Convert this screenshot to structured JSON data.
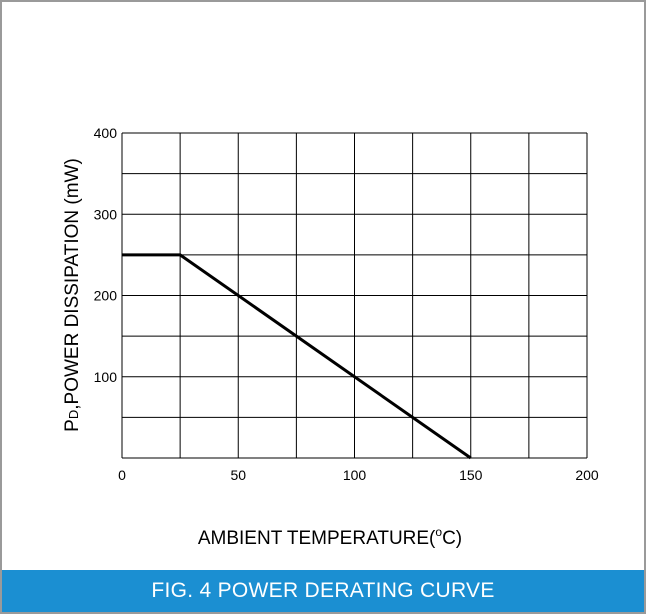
{
  "colors": {
    "caption_bg": "#1b8fd2",
    "caption_text": "#ffffff",
    "border": "#9a9a9a",
    "grid": "#000000",
    "line": "#000000"
  },
  "caption": "FIG. 4 POWER DERATING CURVE",
  "chart_data": {
    "type": "line",
    "title": "",
    "xlabel_main": "AMBIENT TEMPERATURE(",
    "xlabel_sup": "o",
    "xlabel_end": "C)",
    "ylabel_main": "P",
    "ylabel_sub": "D",
    "ylabel_rest": ",POWER DISSIPATION (mW)",
    "xlim": [
      0,
      200
    ],
    "ylim": [
      0,
      400
    ],
    "x_ticks": [
      0,
      50,
      100,
      150,
      200
    ],
    "y_ticks": [
      100,
      200,
      300,
      400
    ],
    "x_grid_step": 25,
    "y_grid_step": 50,
    "grid": true,
    "series": [
      {
        "x": [
          0,
          25,
          150
        ],
        "y": [
          250,
          250,
          0
        ]
      }
    ]
  }
}
